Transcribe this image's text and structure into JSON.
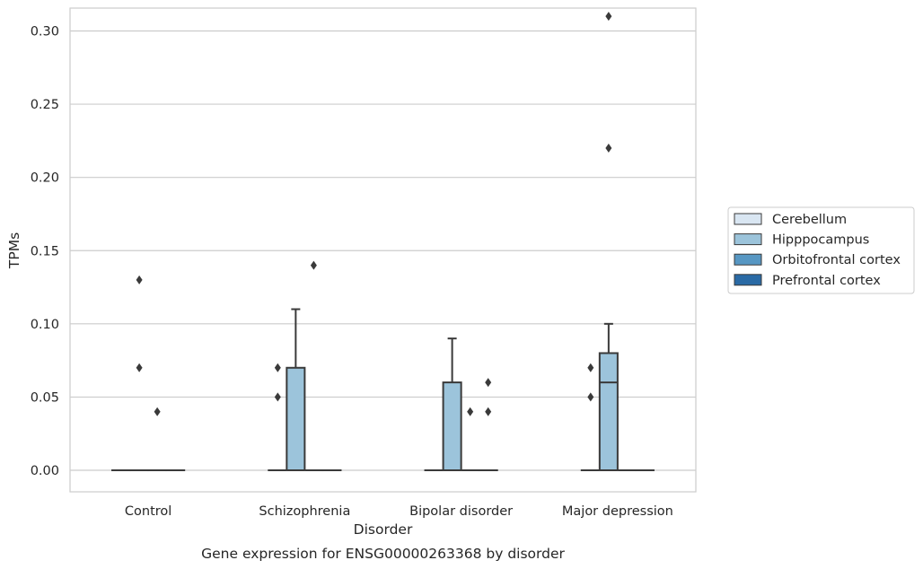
{
  "chart_data": {
    "type": "box",
    "xlabel": "Disorder",
    "ylabel": "TPMs",
    "caption": "Gene expression for ENSG00000263368 by disorder",
    "categories": [
      "Control",
      "Schizophrenia",
      "Bipolar disorder",
      "Major depression"
    ],
    "ylim": [
      -0.015,
      0.325
    ],
    "yticks": [
      0.0,
      0.05,
      0.1,
      0.15,
      0.2,
      0.25,
      0.3
    ],
    "ytick_labels": [
      "0.00",
      "0.05",
      "0.10",
      "0.15",
      "0.20",
      "0.25",
      "0.30"
    ],
    "grid": true,
    "legend_position": "right",
    "series": [
      {
        "name": "Cerebellum",
        "color": "#d9e6f2",
        "boxes": [
          {
            "q1": 0,
            "median": 0,
            "q3": 0,
            "whisker_low": 0,
            "whisker_high": 0,
            "outliers": []
          },
          {
            "q1": 0,
            "median": 0,
            "q3": 0,
            "whisker_low": 0,
            "whisker_high": 0,
            "outliers": [
              0.05,
              0.07
            ]
          },
          {
            "q1": 0,
            "median": 0,
            "q3": 0,
            "whisker_low": 0,
            "whisker_high": 0,
            "outliers": []
          },
          {
            "q1": 0,
            "median": 0,
            "q3": 0,
            "whisker_low": 0,
            "whisker_high": 0,
            "outliers": [
              0.05,
              0.07
            ]
          }
        ]
      },
      {
        "name": "Hipppocampus",
        "color": "#9cc4db",
        "boxes": [
          {
            "q1": 0,
            "median": 0,
            "q3": 0,
            "whisker_low": 0,
            "whisker_high": 0,
            "outliers": [
              0.07,
              0.13
            ]
          },
          {
            "q1": 0,
            "median": 0,
            "q3": 0.07,
            "whisker_low": 0,
            "whisker_high": 0.11,
            "outliers": []
          },
          {
            "q1": 0,
            "median": 0,
            "q3": 0.06,
            "whisker_low": 0,
            "whisker_high": 0.09,
            "outliers": []
          },
          {
            "q1": 0,
            "median": 0.06,
            "q3": 0.08,
            "whisker_low": 0,
            "whisker_high": 0.1,
            "outliers": [
              0.22,
              0.31
            ]
          }
        ]
      },
      {
        "name": "Orbitofrontal cortex",
        "color": "#5797c3",
        "boxes": [
          {
            "q1": 0,
            "median": 0,
            "q3": 0,
            "whisker_low": 0,
            "whisker_high": 0,
            "outliers": [
              0.04
            ]
          },
          {
            "q1": 0,
            "median": 0,
            "q3": 0,
            "whisker_low": 0,
            "whisker_high": 0,
            "outliers": [
              0.14
            ]
          },
          {
            "q1": 0,
            "median": 0,
            "q3": 0,
            "whisker_low": 0,
            "whisker_high": 0,
            "outliers": [
              0.04
            ]
          },
          {
            "q1": 0,
            "median": 0,
            "q3": 0,
            "whisker_low": 0,
            "whisker_high": 0,
            "outliers": []
          }
        ]
      },
      {
        "name": "Prefrontal cortex",
        "color": "#2a6aa5",
        "boxes": [
          {
            "q1": 0,
            "median": 0,
            "q3": 0,
            "whisker_low": 0,
            "whisker_high": 0,
            "outliers": []
          },
          {
            "q1": 0,
            "median": 0,
            "q3": 0,
            "whisker_low": 0,
            "whisker_high": 0,
            "outliers": []
          },
          {
            "q1": 0,
            "median": 0,
            "q3": 0,
            "whisker_low": 0,
            "whisker_high": 0,
            "outliers": [
              0.04,
              0.06
            ]
          },
          {
            "q1": 0,
            "median": 0,
            "q3": 0,
            "whisker_low": 0,
            "whisker_high": 0,
            "outliers": []
          }
        ]
      }
    ]
  },
  "colors": {
    "grid": "#cccccc",
    "axes_frame": "#cccccc",
    "box_edge": "#3a3a3a",
    "outlier": "#3a3a3a",
    "background": "#ffffff"
  }
}
